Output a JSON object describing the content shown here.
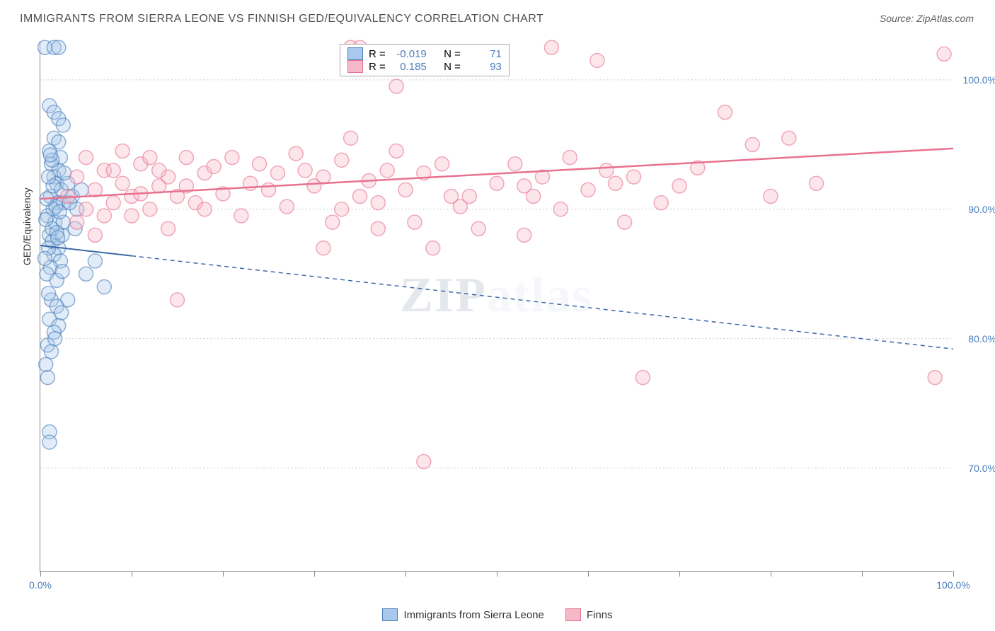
{
  "title": "IMMIGRANTS FROM SIERRA LEONE VS FINNISH GED/EQUIVALENCY CORRELATION CHART",
  "source": "Source: ZipAtlas.com",
  "watermark_a": "ZIP",
  "watermark_b": "atlas",
  "y_axis_title": "GED/Equivalency",
  "chart": {
    "type": "scatter",
    "xlim": [
      0,
      100
    ],
    "ylim": [
      62,
      103
    ],
    "y_ticks": [
      70,
      80,
      90,
      100
    ],
    "y_tick_labels": [
      "70.0%",
      "80.0%",
      "90.0%",
      "100.0%"
    ],
    "x_ticks": [
      0,
      10,
      20,
      30,
      40,
      50,
      60,
      70,
      80,
      90,
      100
    ],
    "x_tick_labels_shown": {
      "0": "0.0%",
      "100": "100.0%"
    },
    "background_color": "#ffffff",
    "grid_color": "#cccccc",
    "axis_color": "#888888",
    "tick_label_color": "#4a7ebb",
    "marker_radius": 10,
    "marker_opacity": 0.35,
    "series": [
      {
        "name": "Immigrants from Sierra Leone",
        "color_fill": "#a8c8ec",
        "color_stroke": "#4a7ebb",
        "R": "-0.019",
        "N": "71",
        "trend": {
          "x1": 0,
          "y1": 87.2,
          "x2": 100,
          "y2": 79.2,
          "solid_until_x": 10,
          "color": "#3a6aa8",
          "width": 2
        },
        "points": [
          [
            0.5,
            102.5
          ],
          [
            1.5,
            102.5
          ],
          [
            2,
            102.5
          ],
          [
            1,
            98
          ],
          [
            1.5,
            97.5
          ],
          [
            2,
            97
          ],
          [
            2.5,
            96.5
          ],
          [
            1.5,
            95.5
          ],
          [
            2,
            95.2
          ],
          [
            1,
            94.5
          ],
          [
            2.2,
            94
          ],
          [
            1.2,
            93.5
          ],
          [
            2,
            93
          ],
          [
            1.5,
            92.5
          ],
          [
            1.8,
            92
          ],
          [
            2.3,
            91.5
          ],
          [
            1.1,
            91
          ],
          [
            1.9,
            90.5
          ],
          [
            2.5,
            90.5
          ],
          [
            1.4,
            90
          ],
          [
            0.8,
            89.5
          ],
          [
            1.6,
            89
          ],
          [
            3,
            92
          ],
          [
            3.5,
            91
          ],
          [
            4,
            90
          ],
          [
            1,
            88
          ],
          [
            1.3,
            87.5
          ],
          [
            2,
            87
          ],
          [
            1.5,
            86.5
          ],
          [
            2.2,
            86
          ],
          [
            1.1,
            85.5
          ],
          [
            0.7,
            85
          ],
          [
            1.8,
            84.5
          ],
          [
            1.3,
            88.5
          ],
          [
            0.9,
            87
          ],
          [
            2.4,
            88
          ],
          [
            5,
            85
          ],
          [
            6,
            86
          ],
          [
            7,
            84
          ],
          [
            3,
            83
          ],
          [
            1.2,
            83
          ],
          [
            1.8,
            82.5
          ],
          [
            2.3,
            82
          ],
          [
            1,
            81.5
          ],
          [
            2,
            81
          ],
          [
            1.5,
            80.5
          ],
          [
            0.8,
            79.5
          ],
          [
            1.2,
            79
          ],
          [
            0.6,
            78
          ],
          [
            0.8,
            77
          ],
          [
            1,
            72.8
          ],
          [
            1,
            72
          ],
          [
            2.5,
            89
          ],
          [
            3.2,
            90.5
          ],
          [
            4.5,
            91.5
          ],
          [
            1.4,
            91.8
          ],
          [
            0.9,
            92.5
          ],
          [
            1.7,
            90.2
          ],
          [
            0.6,
            89.2
          ],
          [
            2.1,
            89.8
          ],
          [
            1.8,
            88.2
          ],
          [
            0.7,
            90.8
          ],
          [
            1.3,
            93.8
          ],
          [
            2.6,
            92.8
          ],
          [
            1.1,
            94.2
          ],
          [
            1.9,
            87.8
          ],
          [
            0.5,
            86.2
          ],
          [
            2.4,
            85.2
          ],
          [
            3.8,
            88.5
          ],
          [
            1.6,
            80
          ],
          [
            0.9,
            83.5
          ]
        ]
      },
      {
        "name": "Finns",
        "color_fill": "#f5b8c8",
        "color_stroke": "#e8718f",
        "R": "0.185",
        "N": "93",
        "trend": {
          "x1": 0,
          "y1": 90.8,
          "x2": 100,
          "y2": 94.7,
          "solid_until_x": 100,
          "color": "#e8718f",
          "width": 2.5
        },
        "points": [
          [
            3,
            91
          ],
          [
            4,
            92.5
          ],
          [
            5,
            90
          ],
          [
            6,
            91.5
          ],
          [
            7,
            93
          ],
          [
            8,
            90.5
          ],
          [
            9,
            92
          ],
          [
            10,
            91
          ],
          [
            11,
            93.5
          ],
          [
            12,
            90
          ],
          [
            13,
            91.8
          ],
          [
            14,
            92.5
          ],
          [
            15,
            91
          ],
          [
            16,
            94
          ],
          [
            17,
            90.5
          ],
          [
            18,
            92.8
          ],
          [
            19,
            93.3
          ],
          [
            20,
            91.2
          ],
          [
            21,
            94
          ],
          [
            22,
            89.5
          ],
          [
            23,
            92
          ],
          [
            24,
            93.5
          ],
          [
            25,
            91.5
          ],
          [
            26,
            92.8
          ],
          [
            27,
            90.2
          ],
          [
            28,
            94.3
          ],
          [
            15,
            83
          ],
          [
            29,
            93
          ],
          [
            30,
            91.8
          ],
          [
            31,
            92.5
          ],
          [
            32,
            89
          ],
          [
            33,
            93.8
          ],
          [
            34,
            95.5
          ],
          [
            35,
            91
          ],
          [
            36,
            92.2
          ],
          [
            37,
            90.5
          ],
          [
            38,
            93
          ],
          [
            34,
            102.5
          ],
          [
            35,
            102.5
          ],
          [
            39,
            99.5
          ],
          [
            39,
            94.5
          ],
          [
            40,
            91.5
          ],
          [
            42,
            92.8
          ],
          [
            43,
            87
          ],
          [
            44,
            93.5
          ],
          [
            45,
            91
          ],
          [
            46,
            90.2
          ],
          [
            48,
            88.5
          ],
          [
            50,
            92
          ],
          [
            52,
            93.5
          ],
          [
            53,
            91.8
          ],
          [
            55,
            92.5
          ],
          [
            56,
            102.5
          ],
          [
            42,
            70.5
          ],
          [
            57,
            90
          ],
          [
            58,
            94
          ],
          [
            60,
            91.5
          ],
          [
            61,
            101.5
          ],
          [
            62,
            93
          ],
          [
            64,
            89
          ],
          [
            65,
            92.5
          ],
          [
            53,
            88
          ],
          [
            68,
            90.5
          ],
          [
            66,
            77
          ],
          [
            70,
            91.8
          ],
          [
            72,
            93.2
          ],
          [
            75,
            97.5
          ],
          [
            78,
            95
          ],
          [
            80,
            91
          ],
          [
            82,
            95.5
          ],
          [
            85,
            92
          ],
          [
            99,
            102
          ],
          [
            98,
            77
          ],
          [
            4,
            89
          ],
          [
            6,
            88
          ],
          [
            8,
            93
          ],
          [
            10,
            89.5
          ],
          [
            12,
            94
          ],
          [
            14,
            88.5
          ],
          [
            16,
            91.8
          ],
          [
            18,
            90
          ],
          [
            5,
            94
          ],
          [
            7,
            89.5
          ],
          [
            9,
            94.5
          ],
          [
            11,
            91.2
          ],
          [
            13,
            93
          ],
          [
            31,
            87
          ],
          [
            33,
            90
          ],
          [
            37,
            88.5
          ],
          [
            41,
            89
          ],
          [
            47,
            91
          ],
          [
            54,
            91
          ],
          [
            63,
            92
          ]
        ]
      }
    ]
  },
  "legend_top": {
    "R_label": "R =",
    "N_label": "N ="
  },
  "legend_bottom_labels": [
    "Immigrants from Sierra Leone",
    "Finns"
  ]
}
